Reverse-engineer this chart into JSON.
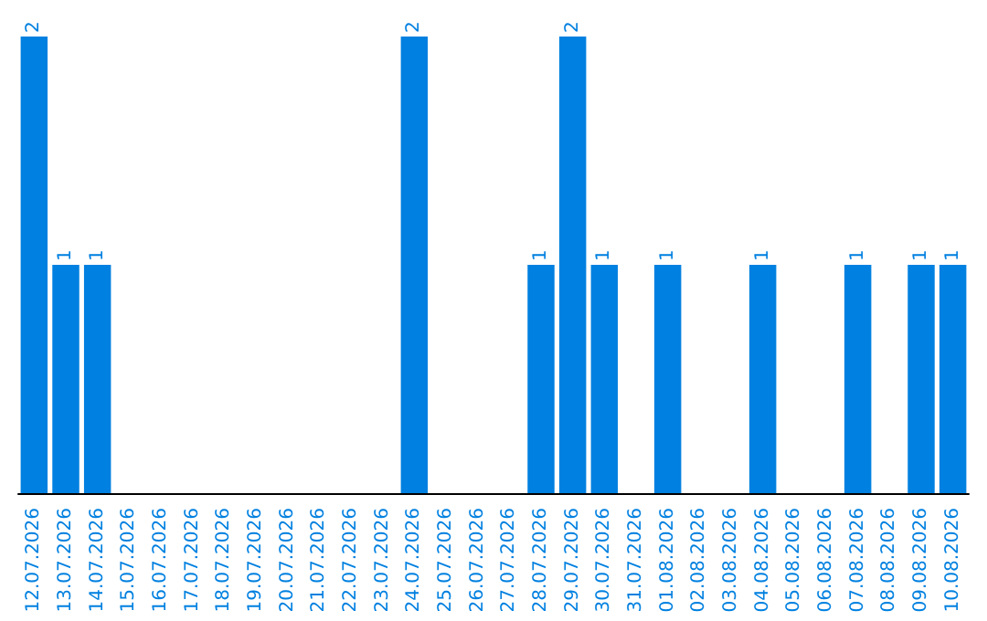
{
  "chart_data": {
    "type": "bar",
    "categories": [
      "12.07.2026",
      "13.07.2026",
      "14.07.2026",
      "15.07.2026",
      "16.07.2026",
      "17.07.2026",
      "18.07.2026",
      "19.07.2026",
      "20.07.2026",
      "21.07.2026",
      "22.07.2026",
      "23.07.2026",
      "24.07.2026",
      "25.07.2026",
      "26.07.2026",
      "27.07.2026",
      "28.07.2026",
      "29.07.2026",
      "30.07.2026",
      "31.07.2026",
      "01.08.2026",
      "02.08.2026",
      "03.08.2026",
      "04.08.2026",
      "05.08.2026",
      "06.08.2026",
      "07.08.2026",
      "08.08.2026",
      "09.08.2026",
      "10.08.2026"
    ],
    "values": [
      2,
      1,
      1,
      0,
      0,
      0,
      0,
      0,
      0,
      0,
      0,
      0,
      2,
      0,
      0,
      0,
      1,
      2,
      1,
      0,
      1,
      0,
      0,
      1,
      0,
      0,
      1,
      0,
      1,
      1
    ],
    "value_labels": [
      "2",
      "1",
      "1",
      null,
      null,
      null,
      null,
      null,
      null,
      null,
      null,
      null,
      "2",
      null,
      null,
      null,
      "1",
      "2",
      "1",
      null,
      "1",
      null,
      null,
      "1",
      null,
      null,
      "1",
      null,
      "1",
      "1"
    ],
    "color": "#0080e0",
    "grid": false
  }
}
